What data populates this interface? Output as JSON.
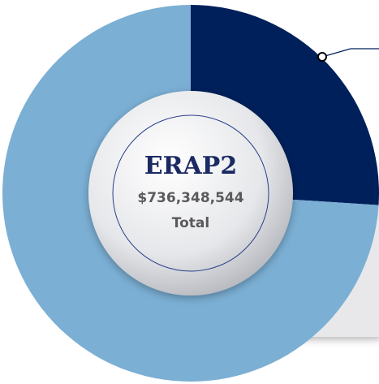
{
  "chart_data": {
    "type": "donut",
    "values": [
      26,
      74
    ],
    "colors": [
      "#00205b",
      "#7bafd4"
    ],
    "center_title": "ERAP2",
    "center_value": "$736,348,544",
    "center_label": "Total"
  }
}
